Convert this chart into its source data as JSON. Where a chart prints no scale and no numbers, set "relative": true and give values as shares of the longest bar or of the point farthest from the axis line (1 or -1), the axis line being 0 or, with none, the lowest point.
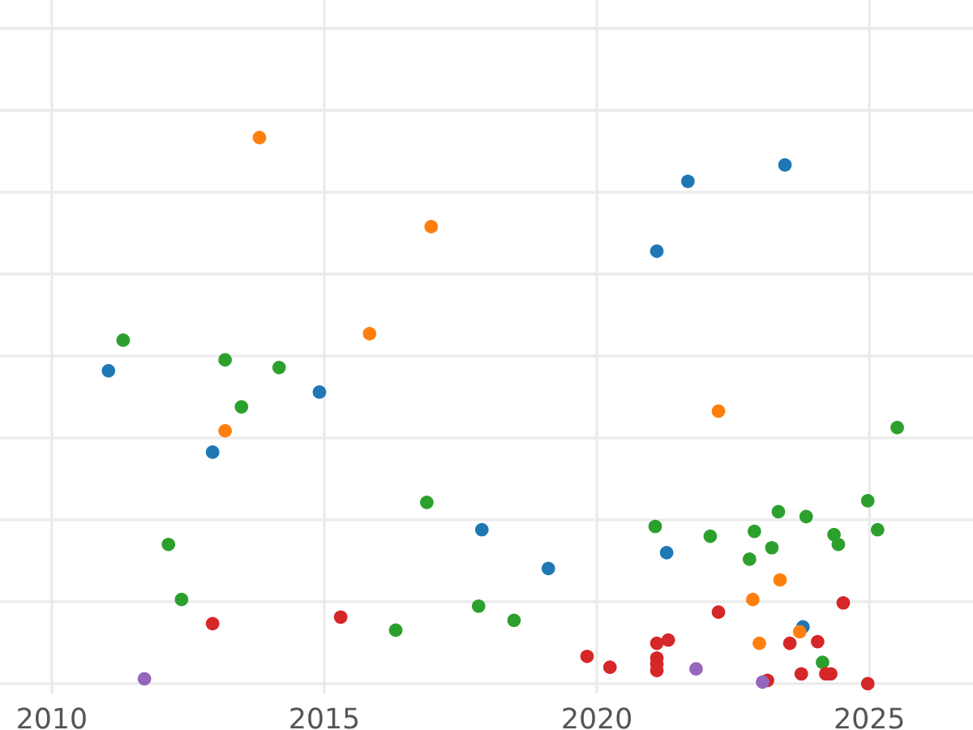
{
  "chart_data": {
    "type": "scatter",
    "relative": true,
    "xlim": [
      2009.05,
      2026.9
    ],
    "xticks": [
      2010,
      2015,
      2020,
      2025
    ],
    "tick_labels": "x",
    "grid": true,
    "series": [
      {
        "color": "#1f77b4",
        "x": [
          2011.04,
          2012.95,
          2014.91,
          2017.89,
          2019.11,
          2021.1,
          2021.28,
          2021.67,
          2023.45,
          2023.78
        ],
        "values": [
          0.573,
          0.424,
          0.534,
          0.282,
          0.211,
          0.792,
          0.24,
          0.92,
          0.95,
          0.104
        ]
      },
      {
        "color": "#ff7f0e",
        "x": [
          2013.81,
          2013.18,
          2015.83,
          2016.96,
          2022.23,
          2023.36,
          2022.86,
          2022.98,
          2023.72
        ],
        "values": [
          1.0,
          0.463,
          0.641,
          0.837,
          0.499,
          0.19,
          0.154,
          0.074,
          0.095
        ]
      },
      {
        "color": "#2ca02c",
        "x": [
          2011.31,
          2013.18,
          2013.48,
          2014.17,
          2012.14,
          2012.38,
          2016.31,
          2016.88,
          2017.83,
          2018.48,
          2021.07,
          2022.08,
          2022.8,
          2022.89,
          2023.21,
          2023.33,
          2023.84,
          2024.35,
          2024.43,
          2024.14,
          2024.97,
          2025.15,
          2025.51
        ],
        "values": [
          0.629,
          0.593,
          0.507,
          0.579,
          0.255,
          0.154,
          0.098,
          0.332,
          0.142,
          0.116,
          0.288,
          0.27,
          0.228,
          0.279,
          0.249,
          0.315,
          0.306,
          0.273,
          0.255,
          0.039,
          0.335,
          0.282,
          0.469
        ]
      },
      {
        "color": "#d62728",
        "x": [
          2012.95,
          2015.3,
          2019.82,
          2020.24,
          2021.1,
          2021.1,
          2021.1,
          2021.1,
          2021.31,
          2022.23,
          2023.13,
          2023.54,
          2023.75,
          2024.05,
          2024.2,
          2024.29,
          2024.52,
          2024.97
        ],
        "values": [
          0.11,
          0.122,
          0.05,
          0.03,
          0.074,
          0.047,
          0.036,
          0.024,
          0.08,
          0.131,
          0.006,
          0.074,
          0.018,
          0.077,
          0.018,
          0.018,
          0.148,
          0.0
        ]
      },
      {
        "color": "#9467bd",
        "x": [
          2011.7,
          2021.82,
          2023.04
        ],
        "values": [
          0.009,
          0.027,
          0.003
        ]
      }
    ]
  }
}
